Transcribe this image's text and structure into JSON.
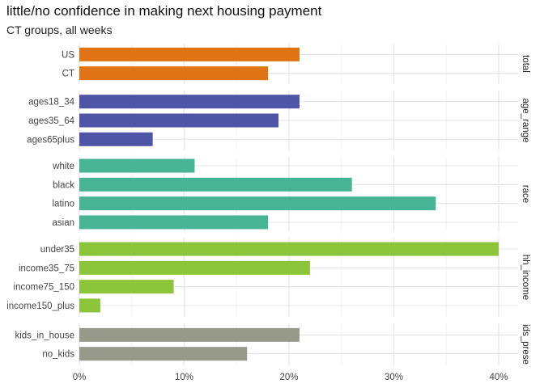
{
  "chart_data": {
    "type": "bar",
    "orientation": "horizontal",
    "title": "little/no confidence in making next housing payment",
    "subtitle": "CT groups, all weeks",
    "xlabel": "",
    "ylabel": "",
    "xlim": [
      0,
      0.4
    ],
    "x_ticks": [
      "0%",
      "10%",
      "20%",
      "30%",
      "40%"
    ],
    "grid": true,
    "facets": [
      {
        "name": "total",
        "strip_label": "total",
        "color": "#E07314",
        "categories": [
          "US",
          "CT"
        ],
        "values": [
          0.21,
          0.18
        ]
      },
      {
        "name": "age_range",
        "strip_label": "age_range",
        "color": "#4E55A6",
        "categories": [
          "ages18_34",
          "ages35_64",
          "ages65plus"
        ],
        "values": [
          0.21,
          0.19,
          0.07
        ]
      },
      {
        "name": "race",
        "strip_label": "race",
        "color": "#47B594",
        "categories": [
          "white",
          "black",
          "latino",
          "asian"
        ],
        "values": [
          0.11,
          0.26,
          0.34,
          0.18
        ]
      },
      {
        "name": "hh_income",
        "strip_label": "hh_income",
        "color": "#8CC43A",
        "categories": [
          "under35",
          "income35_75",
          "income75_150",
          "income150_plus"
        ],
        "values": [
          0.4,
          0.22,
          0.09,
          0.02
        ]
      },
      {
        "name": "kids_present",
        "strip_label": "ids_prese",
        "color": "#979A8A",
        "categories": [
          "kids_in_house",
          "no_kids"
        ],
        "values": [
          0.21,
          0.16
        ]
      }
    ]
  }
}
